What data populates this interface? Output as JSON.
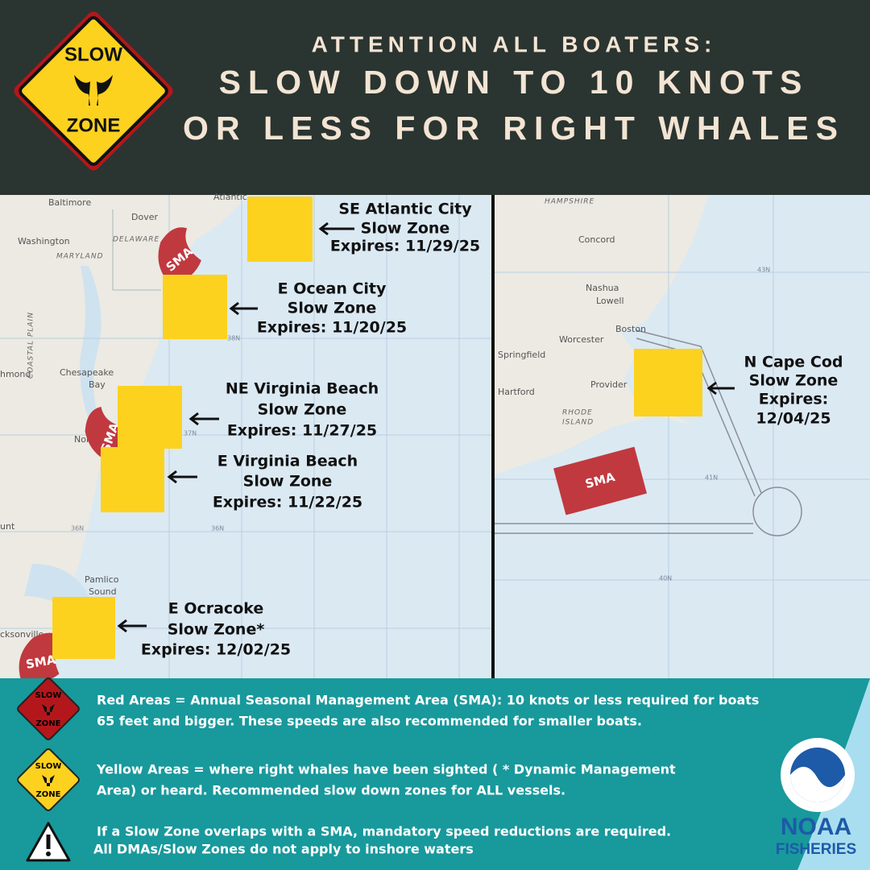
{
  "header": {
    "kicker": "ATTENTION ALL BOATERS:",
    "title_lines": [
      "SLOW DOWN TO 10 KNOTS",
      "OR LESS FOR RIGHT WHALES"
    ],
    "sign": [
      "SLOW",
      "ZONE"
    ]
  },
  "map": {
    "slow_zones": [
      {
        "lines": [
          "SE Atlantic City",
          "Slow Zone",
          "Expires: 11/29/25"
        ]
      },
      {
        "lines": [
          "E Ocean City",
          "Slow Zone",
          "Expires: 11/20/25"
        ]
      },
      {
        "lines": [
          "NE Virginia Beach",
          "Slow Zone",
          "Expires: 11/27/25"
        ]
      },
      {
        "lines": [
          "E Virginia Beach",
          "Slow Zone",
          "Expires: 11/22/25"
        ]
      },
      {
        "lines": [
          "E Ocracoke",
          "Slow Zone*",
          "Expires: 12/02/25"
        ]
      },
      {
        "lines": [
          "N Cape Cod",
          "Slow Zone",
          "Expires:",
          "12/04/25"
        ]
      }
    ],
    "sma_labels": [
      "SMA",
      "SMA",
      "SMA",
      "SMA"
    ],
    "places": [
      "Baltimore",
      "Dover",
      "Washington",
      "DELAWARE",
      "MARYLAND",
      "COASTAL PLAIN",
      "hmond",
      "Chesapeake",
      "Bay",
      "Nor",
      "unt",
      "Pamlico",
      "Sound",
      "cksonville",
      "Atlantic",
      "HAMPSHIRE",
      "Concord",
      "Nashua",
      "Lowell",
      "Boston",
      "Worcester",
      "Springfield",
      "Hartford",
      "Provider",
      "RHODE",
      "ISLAND"
    ],
    "grid_labels": [
      "38N",
      "37N",
      "36N",
      "36N",
      "43N",
      "41N",
      "40N"
    ]
  },
  "legend": {
    "items": [
      {
        "icon": [
          "SLOW",
          "ZONE"
        ],
        "lines": [
          "Red Areas = Annual Seasonal Management Area (SMA):  10 knots or less required for boats",
          "65 feet and bigger. These speeds are also recommended for smaller boats."
        ]
      },
      {
        "icon": [
          "SLOW",
          "ZONE"
        ],
        "lines": [
          "Yellow Areas =  where right whales have been sighted ( * Dynamic Management",
          "Area) or heard. Recommended slow down zones for ALL vessels."
        ]
      },
      {
        "lines": [
          "If a Slow Zone overlaps with a SMA, mandatory speed reductions are required.",
          "All DMAs/Slow Zones do not apply to inshore waters"
        ]
      }
    ]
  },
  "logo": {
    "name": "NOAA",
    "division": "FISHERIES"
  }
}
